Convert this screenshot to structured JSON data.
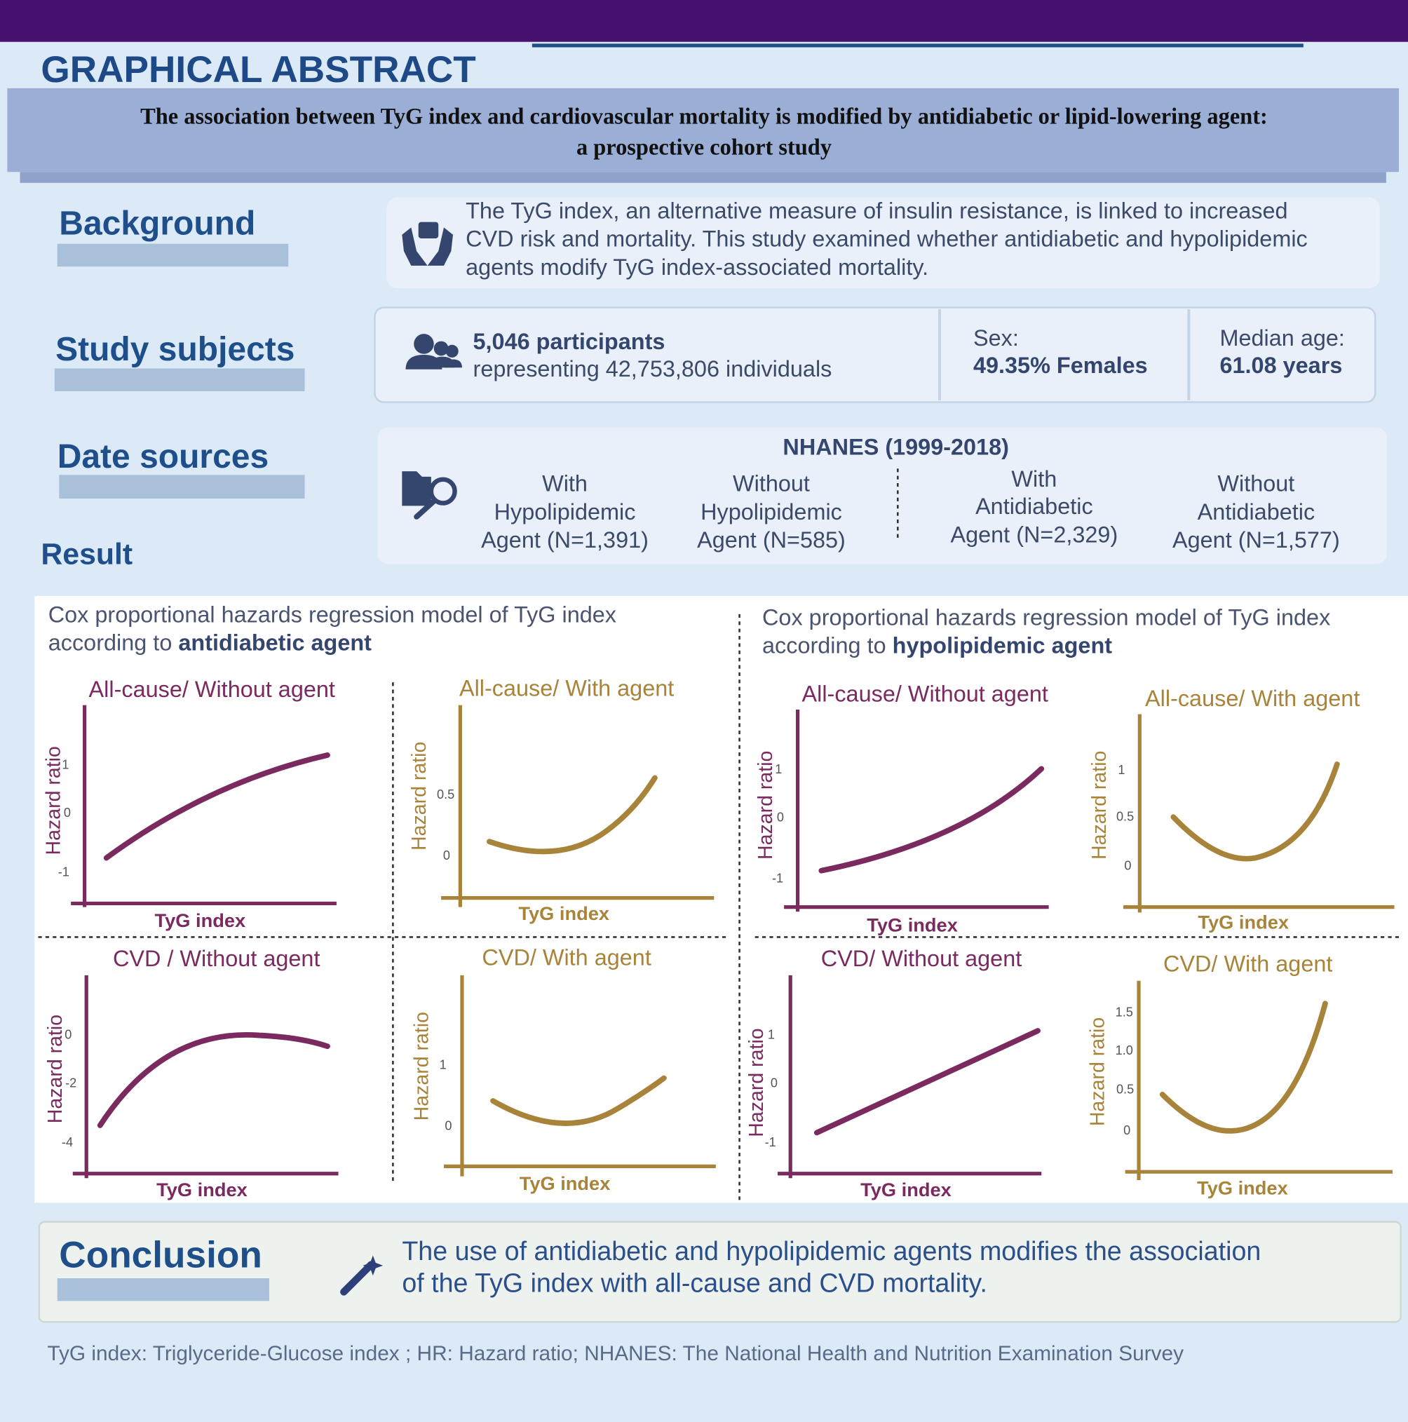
{
  "header": {
    "title": "GRAPHICAL ABSTRACT",
    "study_title": [
      "The association between TyG index and cardiovascular mortality is modified by antidiabetic or lipid-lowering agent:",
      "a prospective cohort study"
    ]
  },
  "background": {
    "heading": "Background",
    "lines": [
      "The TyG index, an alternative measure of insulin resistance, is linked to increased",
      "CVD risk and mortality. This study examined whether antidiabetic and hypolipidemic",
      "agents modify TyG index-associated mortality."
    ]
  },
  "study_subjects": {
    "heading": "Study subjects",
    "participants": "5,046 participants",
    "representing": "representing 42,753,806 individuals",
    "sex_label": "Sex:",
    "sex_value": "49.35% Females",
    "age_label": "Median age:",
    "age_value": "61.08 years"
  },
  "data_sources": {
    "heading": "Date sources",
    "source": "NHANES (1999-2018)",
    "groups": [
      [
        "With",
        "Hypolipidemic",
        "Agent (N=1,391)"
      ],
      [
        "Without",
        "Hypolipidemic",
        "Agent (N=585)"
      ],
      [
        "With",
        "Antidiabetic",
        "Agent (N=2,329)"
      ],
      [
        "Without",
        "Antidiabetic",
        "Agent (N=1,577)"
      ]
    ]
  },
  "result": {
    "heading": "Result",
    "panels": [
      {
        "title_line": "Cox proportional hazards regression model of TyG index",
        "prefix": "according to",
        "emphasis": "antidiabetic agent",
        "plots": [
          {
            "title": "All-cause/ Without agent",
            "y_label": "Hazard ratio",
            "x_label": "TyG index",
            "ticks": [
              "1",
              "0",
              "-1"
            ],
            "color": "#7b2a5f"
          },
          {
            "title": "All-cause/ With agent",
            "y_label": "Hazard ratio",
            "x_label": "TyG index",
            "ticks": [
              "0.5",
              "0"
            ],
            "color": "#a8843a"
          },
          {
            "title": "CVD / Without agent",
            "y_label": "Hazard ratio",
            "x_label": "TyG index",
            "ticks": [
              "0",
              "-2",
              "-4"
            ],
            "color": "#7b2a5f"
          },
          {
            "title": "CVD/ With agent",
            "y_label": "Hazard ratio",
            "x_label": "TyG index",
            "ticks": [
              "1",
              "0"
            ],
            "color": "#a8843a"
          }
        ]
      },
      {
        "title_line": "Cox proportional hazards regression model of TyG index",
        "prefix": "according to",
        "emphasis": "hypolipidemic agent",
        "plots": [
          {
            "title": "All-cause/ Without agent",
            "y_label": "Hazard ratio",
            "x_label": "TyG index",
            "ticks": [
              "1",
              "0",
              "-1"
            ],
            "color": "#7b2a5f"
          },
          {
            "title": "All-cause/ With agent",
            "y_label": "Hazard ratio",
            "x_label": "TyG index",
            "ticks": [
              "1",
              "0.5",
              "0"
            ],
            "color": "#a8843a"
          },
          {
            "title": "CVD/ Without agent",
            "y_label": "Hazard ratio",
            "x_label": "TyG index",
            "ticks": [
              "1",
              "0",
              "-1"
            ],
            "color": "#7b2a5f"
          },
          {
            "title": "CVD/ With agent",
            "y_label": "Hazard ratio",
            "x_label": "TyG index",
            "ticks": [
              "1.5",
              "1.0",
              "0.5",
              "0"
            ],
            "color": "#a8843a"
          }
        ]
      }
    ]
  },
  "conclusion": {
    "heading": "Conclusion",
    "lines": [
      "The use of antidiabetic and hypolipidemic agents modifies the association",
      "of the TyG index  with all-cause and CVD mortality."
    ]
  },
  "footnote": "TyG index: Triglyceride-Glucose index ; HR: Hazard ratio; NHANES: The National Health and Nutrition Examination Survey"
}
